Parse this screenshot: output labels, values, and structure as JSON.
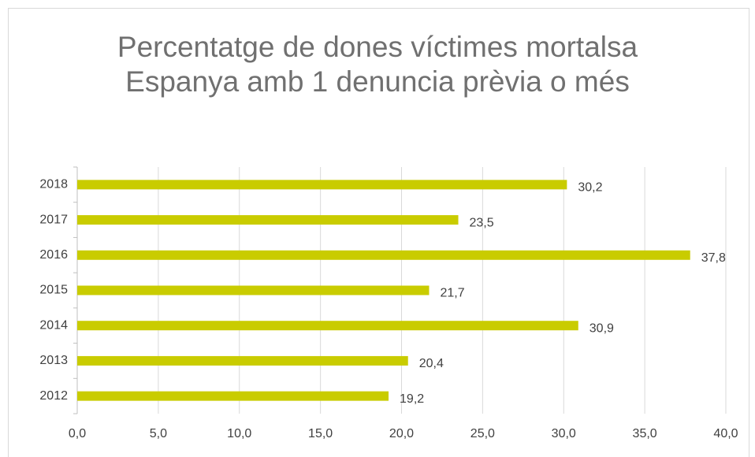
{
  "chart_data": {
    "type": "bar",
    "orientation": "horizontal",
    "title": "Percentatge de dones víctimes mortalsa Espanya amb 1 denuncia prèvia o més",
    "categories": [
      "2012",
      "2013",
      "2014",
      "2015",
      "2016",
      "2017",
      "2018"
    ],
    "values": [
      19.2,
      20.4,
      30.9,
      21.7,
      37.8,
      23.5,
      30.2
    ],
    "value_labels": [
      "19,2",
      "20,4",
      "30,9",
      "21,7",
      "37,8",
      "23,5",
      "30,2"
    ],
    "color": "#c9cc00",
    "xlim": [
      0,
      40
    ],
    "xticks": [
      {
        "value": 0,
        "label": "0,0"
      },
      {
        "value": 5,
        "label": "5,0"
      },
      {
        "value": 10,
        "label": "10,0"
      },
      {
        "value": 15,
        "label": "15,0"
      },
      {
        "value": 20,
        "label": "20,0"
      },
      {
        "value": 25,
        "label": "25,0"
      },
      {
        "value": 30,
        "label": "30,0"
      },
      {
        "value": 35,
        "label": "35,0"
      },
      {
        "value": 40,
        "label": "40,0"
      }
    ],
    "grid": true
  }
}
